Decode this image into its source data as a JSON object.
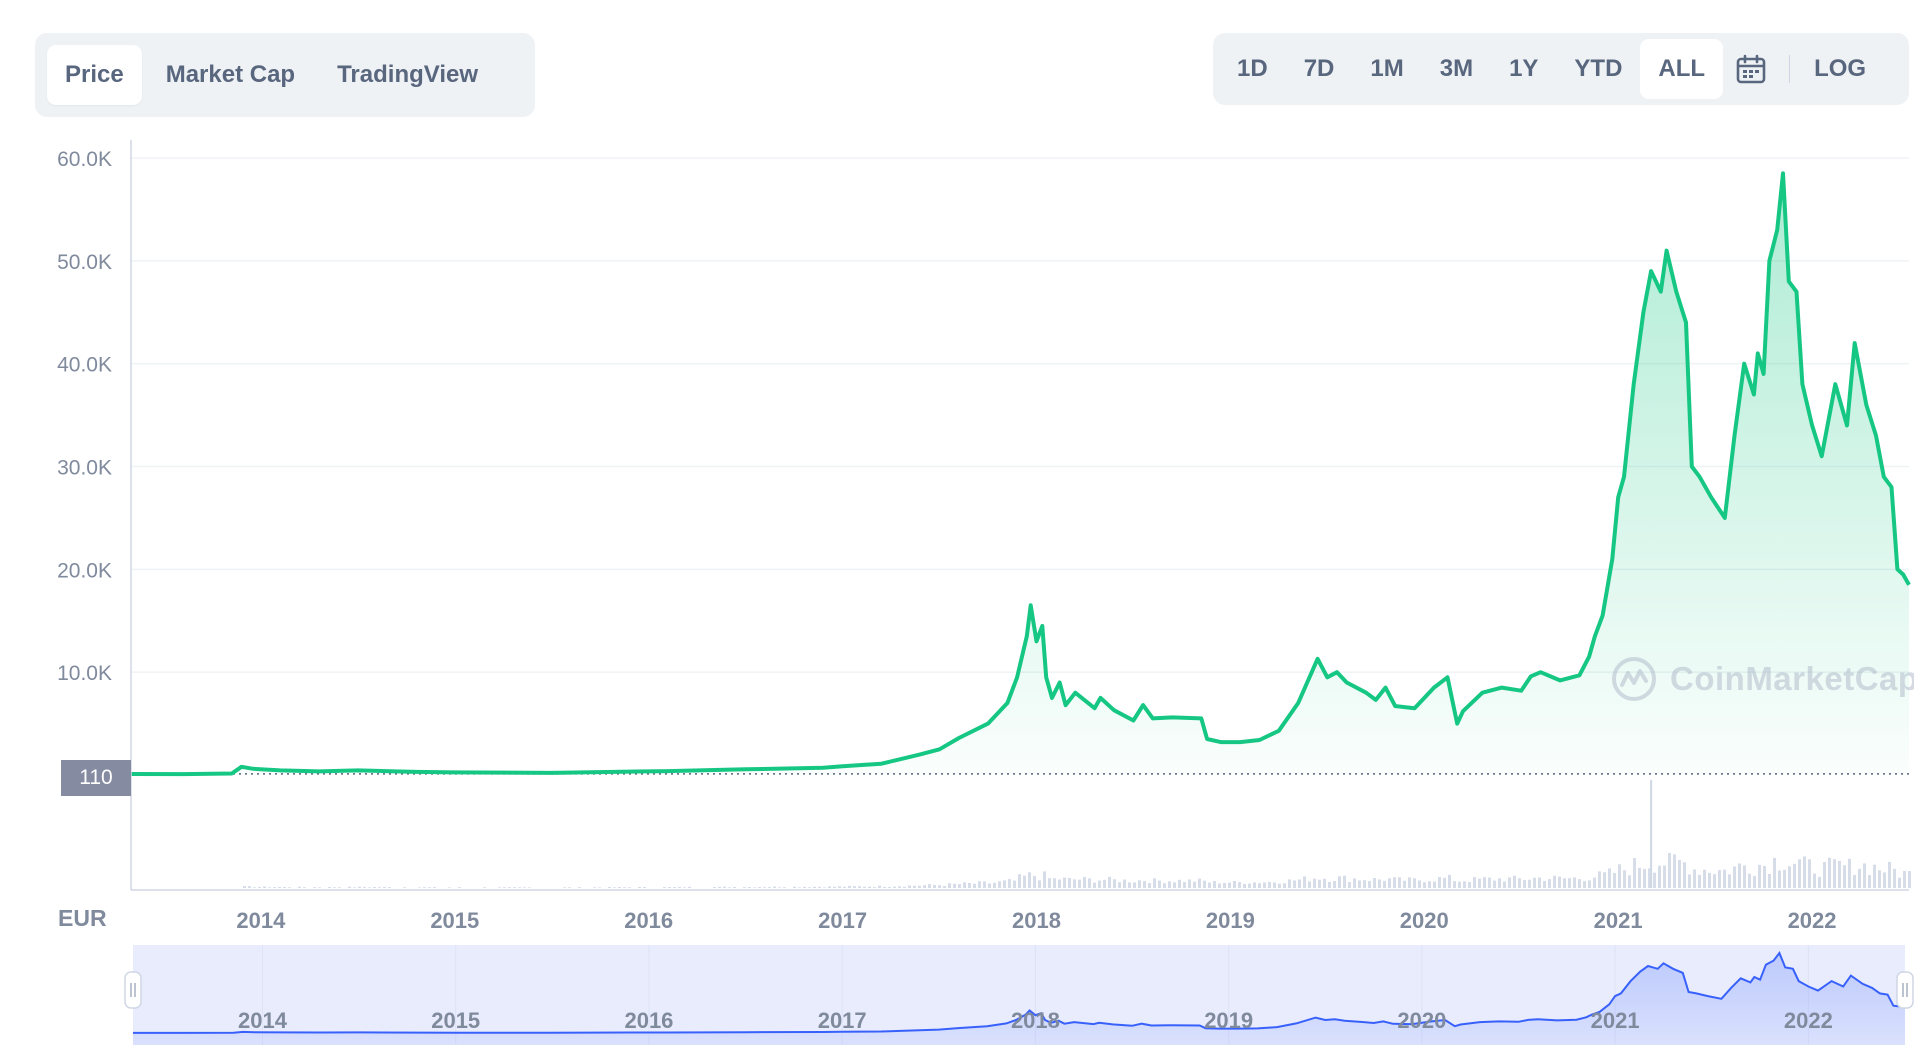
{
  "view_tabs": [
    {
      "label": "Price",
      "active": true
    },
    {
      "label": "Market Cap",
      "active": false
    },
    {
      "label": "TradingView",
      "active": false
    }
  ],
  "ranges": [
    {
      "label": "1D",
      "active": false
    },
    {
      "label": "7D",
      "active": false
    },
    {
      "label": "1M",
      "active": false
    },
    {
      "label": "3M",
      "active": false
    },
    {
      "label": "1Y",
      "active": false
    },
    {
      "label": "YTD",
      "active": false
    },
    {
      "label": "ALL",
      "active": true
    }
  ],
  "log_label": "LOG",
  "calendar_icon": "calendar-icon",
  "currency_label": "EUR",
  "current_price_label": "110",
  "watermark": "CoinMarketCap",
  "colors": {
    "line": "#16c784",
    "fill_top": "#16c784",
    "grid": "#eff2f5",
    "volume": "#cfd6e4",
    "navigator_fill": "#e8ecfd",
    "navigator_line": "#3861fb"
  },
  "chart_data": {
    "type": "area",
    "title": "",
    "xlabel": "",
    "ylabel": "",
    "x_range": [
      2013.33,
      2022.5
    ],
    "ylim": [
      0,
      60000
    ],
    "y_ticks": [
      {
        "value": 10000,
        "label": "10.0K"
      },
      {
        "value": 20000,
        "label": "20.0K"
      },
      {
        "value": 30000,
        "label": "30.0K"
      },
      {
        "value": 40000,
        "label": "40.0K"
      },
      {
        "value": 50000,
        "label": "50.0K"
      },
      {
        "value": 60000,
        "label": "60.0K"
      }
    ],
    "x_ticks": [
      {
        "value": 2014,
        "label": "2014"
      },
      {
        "value": 2015,
        "label": "2015"
      },
      {
        "value": 2016,
        "label": "2016"
      },
      {
        "value": 2017,
        "label": "2017"
      },
      {
        "value": 2018,
        "label": "2018"
      },
      {
        "value": 2019,
        "label": "2019"
      },
      {
        "value": 2020,
        "label": "2020"
      },
      {
        "value": 2021,
        "label": "2021"
      },
      {
        "value": 2022,
        "label": "2022"
      }
    ],
    "reference_line": 110,
    "grid": true,
    "series": [
      {
        "points": [
          [
            2013.33,
            100
          ],
          [
            2013.6,
            90
          ],
          [
            2013.85,
            150
          ],
          [
            2013.9,
            800
          ],
          [
            2013.96,
            600
          ],
          [
            2014.1,
            450
          ],
          [
            2014.3,
            350
          ],
          [
            2014.5,
            450
          ],
          [
            2014.8,
            300
          ],
          [
            2015.0,
            250
          ],
          [
            2015.5,
            200
          ],
          [
            2015.9,
            330
          ],
          [
            2016.1,
            380
          ],
          [
            2016.5,
            550
          ],
          [
            2016.9,
            700
          ],
          [
            2017.0,
            850
          ],
          [
            2017.2,
            1100
          ],
          [
            2017.4,
            2000
          ],
          [
            2017.5,
            2500
          ],
          [
            2017.6,
            3600
          ],
          [
            2017.75,
            5000
          ],
          [
            2017.85,
            7000
          ],
          [
            2017.9,
            9500
          ],
          [
            2017.95,
            13500
          ],
          [
            2017.97,
            16500
          ],
          [
            2018.0,
            13000
          ],
          [
            2018.03,
            14500
          ],
          [
            2018.05,
            9500
          ],
          [
            2018.08,
            7500
          ],
          [
            2018.12,
            9000
          ],
          [
            2018.15,
            6800
          ],
          [
            2018.2,
            8000
          ],
          [
            2018.3,
            6500
          ],
          [
            2018.33,
            7500
          ],
          [
            2018.4,
            6300
          ],
          [
            2018.5,
            5300
          ],
          [
            2018.55,
            6800
          ],
          [
            2018.6,
            5500
          ],
          [
            2018.7,
            5600
          ],
          [
            2018.85,
            5500
          ],
          [
            2018.88,
            3500
          ],
          [
            2018.95,
            3200
          ],
          [
            2019.05,
            3200
          ],
          [
            2019.15,
            3400
          ],
          [
            2019.25,
            4300
          ],
          [
            2019.35,
            7000
          ],
          [
            2019.45,
            11300
          ],
          [
            2019.5,
            9500
          ],
          [
            2019.55,
            10000
          ],
          [
            2019.6,
            9000
          ],
          [
            2019.7,
            8000
          ],
          [
            2019.75,
            7300
          ],
          [
            2019.8,
            8500
          ],
          [
            2019.85,
            6700
          ],
          [
            2019.95,
            6500
          ],
          [
            2020.05,
            8500
          ],
          [
            2020.12,
            9500
          ],
          [
            2020.17,
            5000
          ],
          [
            2020.2,
            6200
          ],
          [
            2020.3,
            8000
          ],
          [
            2020.4,
            8500
          ],
          [
            2020.5,
            8200
          ],
          [
            2020.55,
            9600
          ],
          [
            2020.6,
            10000
          ],
          [
            2020.7,
            9200
          ],
          [
            2020.8,
            9700
          ],
          [
            2020.85,
            11500
          ],
          [
            2020.88,
            13500
          ],
          [
            2020.92,
            15500
          ],
          [
            2020.97,
            21000
          ],
          [
            2021.0,
            27000
          ],
          [
            2021.03,
            29000
          ],
          [
            2021.08,
            38000
          ],
          [
            2021.13,
            45000
          ],
          [
            2021.17,
            49000
          ],
          [
            2021.22,
            47000
          ],
          [
            2021.25,
            51000
          ],
          [
            2021.3,
            47000
          ],
          [
            2021.35,
            44000
          ],
          [
            2021.38,
            30000
          ],
          [
            2021.42,
            29000
          ],
          [
            2021.48,
            27000
          ],
          [
            2021.55,
            25000
          ],
          [
            2021.6,
            33000
          ],
          [
            2021.65,
            40000
          ],
          [
            2021.7,
            37000
          ],
          [
            2021.72,
            41000
          ],
          [
            2021.75,
            39000
          ],
          [
            2021.78,
            50000
          ],
          [
            2021.82,
            53000
          ],
          [
            2021.85,
            58500
          ],
          [
            2021.88,
            48000
          ],
          [
            2021.92,
            47000
          ],
          [
            2021.95,
            38000
          ],
          [
            2022.0,
            34000
          ],
          [
            2022.05,
            31000
          ],
          [
            2022.12,
            38000
          ],
          [
            2022.18,
            34000
          ],
          [
            2022.22,
            42000
          ],
          [
            2022.28,
            36000
          ],
          [
            2022.33,
            33000
          ],
          [
            2022.37,
            29000
          ],
          [
            2022.41,
            28000
          ],
          [
            2022.44,
            20000
          ],
          [
            2022.47,
            19500
          ],
          [
            2022.5,
            18500
          ]
        ]
      }
    ]
  }
}
